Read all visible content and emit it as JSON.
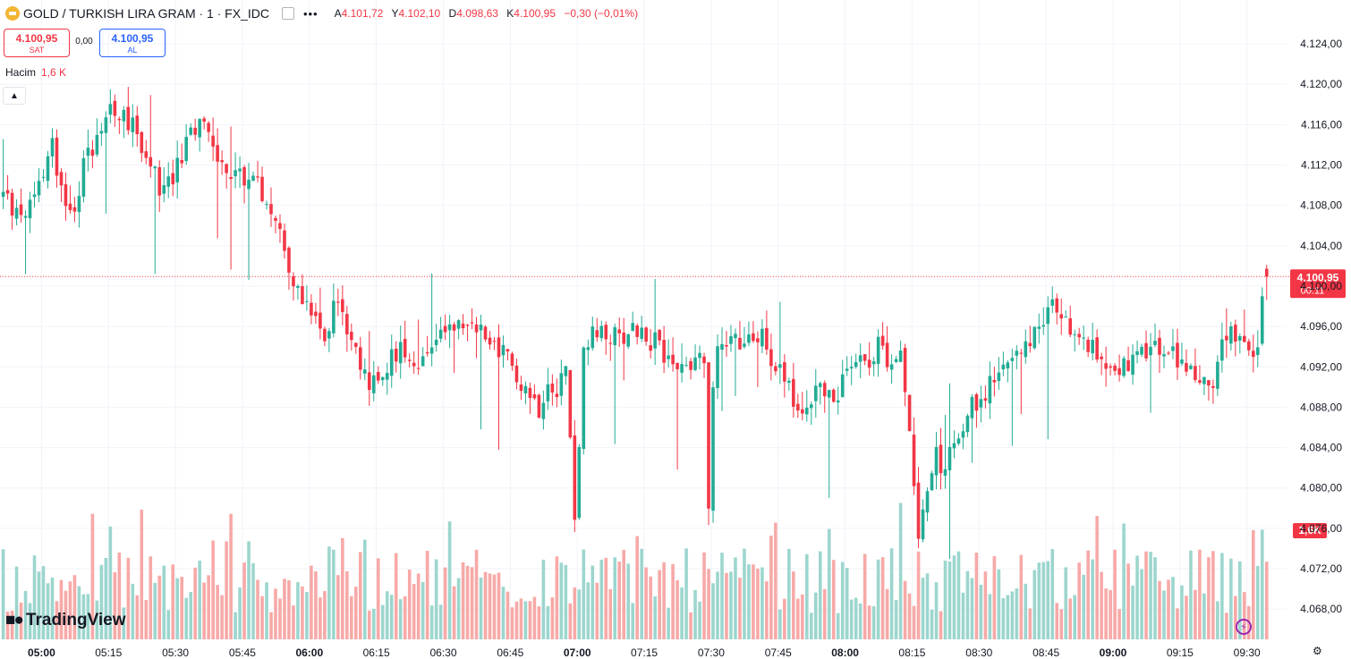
{
  "header": {
    "symbol": "GOLD / TURKISH LIRA GRAM",
    "interval": "1",
    "source": "FX_IDC",
    "dot": "·",
    "more": "•••",
    "ohlc": [
      {
        "key": "A",
        "value": "4.101,72"
      },
      {
        "key": "Y",
        "value": "4.102,10"
      },
      {
        "key": "D",
        "value": "4.098,63"
      },
      {
        "key": "K",
        "value": "4.100,95"
      }
    ],
    "change": "−0,30 (−0,01%)"
  },
  "trade": {
    "sell_price": "4.100,95",
    "sell_label": "SAT",
    "spread": "0,00",
    "buy_price": "4.100,95",
    "buy_label": "AL"
  },
  "volume_indicator": {
    "label": "Hacim",
    "value": "1,6 K"
  },
  "collapse_icon": "chevron-up-icon",
  "branding": {
    "name": "TradingView"
  },
  "last_price_badge": {
    "price": "4.100,95",
    "countdown": "00:11"
  },
  "volume_badge": "1,6K",
  "colors": {
    "up": "#22ab94",
    "down": "#f23645",
    "vol_up": "#9cd6ce",
    "vol_down": "#f7a9a7",
    "grid": "#f0f3fa",
    "last": "#f23645"
  },
  "chart_data": {
    "type": "candlestick",
    "y_ticks": [
      "4.124,00",
      "4.120,00",
      "4.116,00",
      "4.112,00",
      "4.108,00",
      "4.104,00",
      "4.100,00",
      "4.096,00",
      "4.092,00",
      "4.088,00",
      "4.084,00",
      "4.080,00",
      "4.076,00",
      "4.072,00",
      "4.068,00"
    ],
    "y_tick_values": [
      4124,
      4120,
      4116,
      4112,
      4108,
      4104,
      4100,
      4096,
      4092,
      4088,
      4084,
      4080,
      4076,
      4072,
      4068
    ],
    "x_ticks": [
      "05:00",
      "05:15",
      "05:30",
      "05:45",
      "06:00",
      "06:15",
      "06:30",
      "06:45",
      "07:00",
      "07:15",
      "07:30",
      "07:45",
      "08:00",
      "08:15",
      "08:30",
      "08:45",
      "09:00",
      "09:15",
      "09:30"
    ],
    "x_tick_bold": [
      true,
      false,
      false,
      false,
      true,
      false,
      false,
      false,
      true,
      false,
      false,
      false,
      true,
      false,
      false,
      false,
      true,
      false,
      false
    ],
    "ylim": [
      4066.6,
      4125.6
    ],
    "last_price": 4100.95,
    "minute_anchors": [
      [
        0,
        4109
      ],
      [
        3,
        4107
      ],
      [
        6,
        4108
      ],
      [
        9,
        4111
      ],
      [
        11,
        4114
      ],
      [
        13,
        4110
      ],
      [
        16,
        4107
      ],
      [
        18,
        4112
      ],
      [
        21,
        4115
      ],
      [
        24,
        4118
      ],
      [
        27,
        4117
      ],
      [
        30,
        4115
      ],
      [
        33,
        4112
      ],
      [
        36,
        4109
      ],
      [
        39,
        4112
      ],
      [
        42,
        4115
      ],
      [
        45,
        4116
      ],
      [
        48,
        4113
      ],
      [
        51,
        4111
      ],
      [
        54,
        4111
      ],
      [
        57,
        4110
      ],
      [
        60,
        4108
      ],
      [
        63,
        4104
      ],
      [
        66,
        4099
      ],
      [
        69,
        4097
      ],
      [
        72,
        4095
      ],
      [
        75,
        4099
      ],
      [
        77,
        4095
      ],
      [
        79,
        4093
      ],
      [
        81,
        4091
      ],
      [
        84,
        4090
      ],
      [
        87,
        4093
      ],
      [
        90,
        4094
      ],
      [
        93,
        4092
      ],
      [
        96,
        4094
      ],
      [
        99,
        4095
      ],
      [
        102,
        4096
      ],
      [
        105,
        4096
      ],
      [
        108,
        4095
      ],
      [
        111,
        4094
      ],
      [
        114,
        4092
      ],
      [
        117,
        4090
      ],
      [
        120,
        4088
      ],
      [
        122,
        4091
      ],
      [
        124,
        4090
      ],
      [
        126,
        4092
      ],
      [
        128,
        4077
      ],
      [
        130,
        4093
      ],
      [
        132,
        4095
      ],
      [
        135,
        4095
      ],
      [
        138,
        4095
      ],
      [
        141,
        4096
      ],
      [
        144,
        4095
      ],
      [
        147,
        4094
      ],
      [
        150,
        4092
      ],
      [
        153,
        4092
      ],
      [
        156,
        4093
      ],
      [
        157,
        4092
      ],
      [
        158,
        4079
      ],
      [
        159,
        4090
      ],
      [
        160,
        4094
      ],
      [
        163,
        4095
      ],
      [
        166,
        4094
      ],
      [
        169,
        4095
      ],
      [
        170,
        4096
      ],
      [
        172,
        4093
      ],
      [
        174,
        4092
      ],
      [
        176,
        4090
      ],
      [
        178,
        4087
      ],
      [
        180,
        4088
      ],
      [
        182,
        4090
      ],
      [
        184,
        4090
      ],
      [
        186,
        4088
      ],
      [
        188,
        4091
      ],
      [
        190,
        4093
      ],
      [
        192,
        4093
      ],
      [
        194,
        4093
      ],
      [
        196,
        4094
      ],
      [
        198,
        4093
      ],
      [
        201,
        4093
      ],
      [
        203,
        4085
      ],
      [
        205,
        4076
      ],
      [
        207,
        4080
      ],
      [
        209,
        4083
      ],
      [
        211,
        4082
      ],
      [
        213,
        4084
      ],
      [
        215,
        4086
      ],
      [
        217,
        4088
      ],
      [
        219,
        4089
      ],
      [
        221,
        4090
      ],
      [
        223,
        4091
      ],
      [
        225,
        4092
      ],
      [
        227,
        4093
      ],
      [
        229,
        4094
      ],
      [
        231,
        4096
      ],
      [
        233,
        4097
      ],
      [
        235,
        4098
      ],
      [
        237,
        4097
      ],
      [
        240,
        4095
      ],
      [
        243,
        4094
      ],
      [
        246,
        4093
      ],
      [
        249,
        4092
      ],
      [
        252,
        4092
      ],
      [
        255,
        4093
      ],
      [
        258,
        4094
      ],
      [
        261,
        4093
      ],
      [
        263,
        4093
      ],
      [
        265,
        4092
      ],
      [
        267,
        4091
      ],
      [
        269,
        4090
      ],
      [
        271,
        4091
      ],
      [
        273,
        4094
      ],
      [
        275,
        4095
      ],
      [
        277,
        4094
      ],
      [
        279,
        4093
      ],
      [
        281,
        4095
      ],
      [
        282,
        4100
      ],
      [
        283,
        4101
      ]
    ],
    "volume_range": [
      0,
      3300
    ],
    "volume_max_seen": 3255
  }
}
